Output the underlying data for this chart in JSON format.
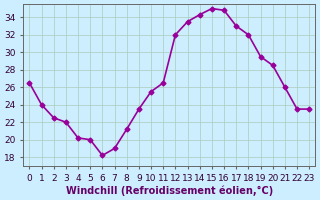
{
  "x": [
    0,
    1,
    2,
    3,
    4,
    5,
    6,
    7,
    8,
    9,
    10,
    11,
    12,
    13,
    14,
    15,
    16,
    17,
    18,
    19,
    20,
    21,
    22,
    23
  ],
  "y": [
    26.5,
    24.0,
    22.5,
    22.0,
    20.2,
    20.0,
    18.2,
    19.0,
    21.2,
    23.5,
    25.5,
    26.5,
    32.0,
    33.5,
    34.3,
    35.0,
    34.8,
    33.0,
    32.0,
    29.5,
    28.5,
    26.0,
    23.5,
    23.5
  ],
  "line_color": "#990099",
  "marker": "D",
  "marker_size": 2.5,
  "bg_color": "#cceeff",
  "grid_color": "#aaccbb",
  "xlabel": "Windchill (Refroidissement éolien,°C)",
  "xlim": [
    -0.5,
    23.5
  ],
  "ylim": [
    17,
    35.5
  ],
  "yticks": [
    18,
    20,
    22,
    24,
    26,
    28,
    30,
    32,
    34
  ],
  "xticks": [
    0,
    1,
    2,
    3,
    4,
    5,
    6,
    7,
    8,
    9,
    10,
    11,
    12,
    13,
    14,
    15,
    16,
    17,
    18,
    19,
    20,
    21,
    22,
    23
  ],
  "xlabel_fontsize": 7,
  "tick_fontsize": 6.5,
  "line_width": 1.2
}
